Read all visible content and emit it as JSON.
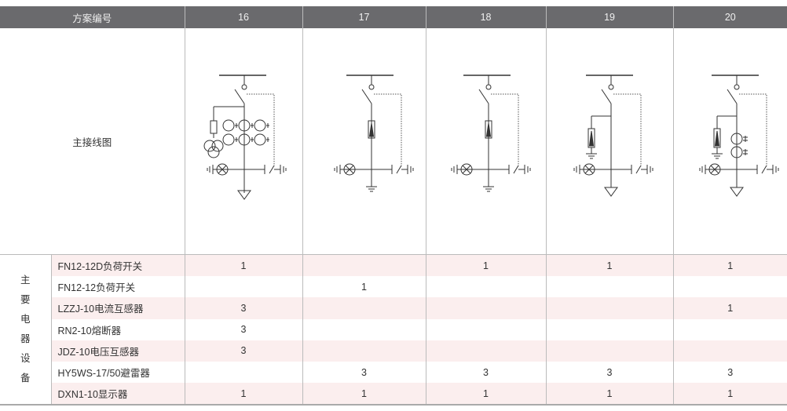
{
  "header": {
    "label": "方案编号",
    "schemes": [
      "16",
      "17",
      "18",
      "19",
      "20"
    ]
  },
  "diagram_row_label": "主接线图",
  "group_label": [
    "主",
    "要",
    "电",
    "器",
    "设",
    "备"
  ],
  "rows": [
    {
      "name": "FN12-12D负荷开关",
      "values": [
        "1",
        "",
        "1",
        "1",
        "1"
      ]
    },
    {
      "name": "FN12-12负荷开关",
      "values": [
        "",
        "1",
        "",
        "",
        ""
      ]
    },
    {
      "name": "LZZJ-10电流互感器",
      "values": [
        "3",
        "",
        "",
        "",
        "1"
      ]
    },
    {
      "name": "RN2-10熔断器",
      "values": [
        "3",
        "",
        "",
        "",
        ""
      ]
    },
    {
      "name": "JDZ-10电压互感器",
      "values": [
        "3",
        "",
        "",
        "",
        ""
      ]
    },
    {
      "name": "HY5WS-17/50避雷器",
      "values": [
        "",
        "3",
        "3",
        "3",
        "3"
      ]
    },
    {
      "name": "DXN1-10显示器",
      "values": [
        "1",
        "1",
        "1",
        "1",
        "1"
      ]
    }
  ],
  "colors": {
    "header_bg": "#6a6a6d",
    "row_pink": "#fbeeee",
    "line": "#333333"
  }
}
